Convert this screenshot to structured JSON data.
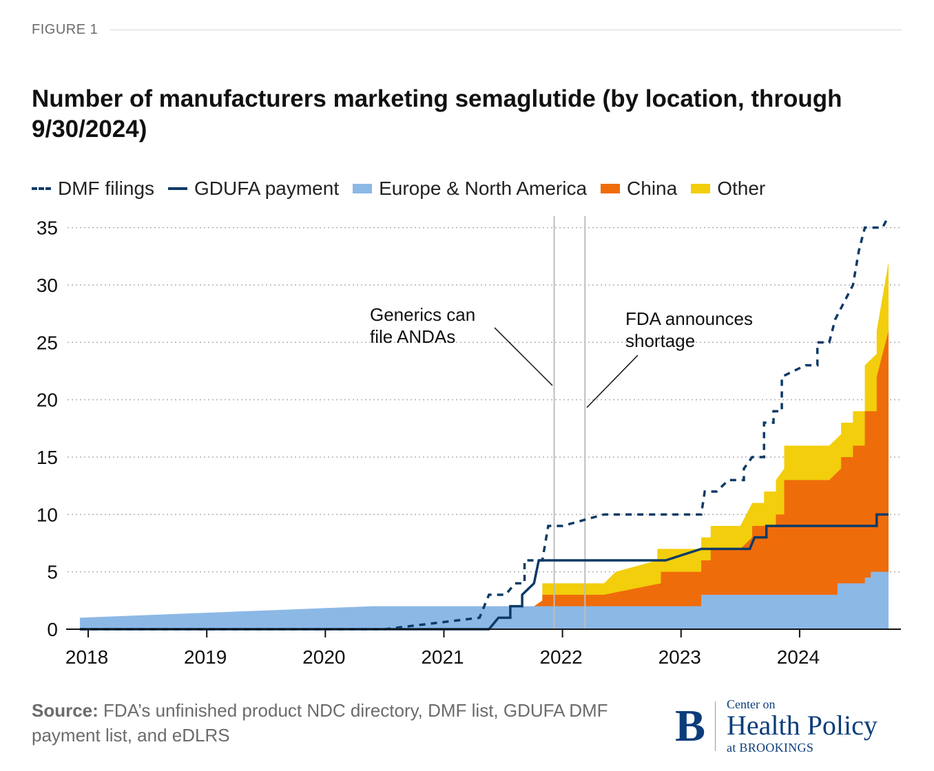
{
  "figure_label": "FIGURE 1",
  "title": "Number of manufacturers marketing semaglutide (by location, through 9/30/2024)",
  "legend": [
    {
      "label": "DMF filings",
      "style": "dash",
      "color": "#0d3a66"
    },
    {
      "label": "GDUFA payment",
      "style": "line",
      "color": "#0d3a66"
    },
    {
      "label": "Europe & North America",
      "style": "area",
      "color": "#8cb8e6"
    },
    {
      "label": "China",
      "style": "area",
      "color": "#ef6c0a"
    },
    {
      "label": "Other",
      "style": "area",
      "color": "#f2ce0c"
    }
  ],
  "chart_data": {
    "type": "area",
    "x_label": "",
    "y_label": "",
    "xlim": [
      2017.93,
      2024.75
    ],
    "ylim": [
      0,
      36
    ],
    "y_ticks": [
      0,
      5,
      10,
      15,
      20,
      25,
      30,
      35
    ],
    "x_ticks": [
      "2018",
      "2019",
      "2020",
      "2021",
      "2022",
      "2023",
      "2024"
    ],
    "grid": "horizontal dotted",
    "legend_position": "top",
    "colors": {
      "europe_na": "#8cb8e6",
      "china": "#ef6c0a",
      "other": "#f2ce0c",
      "lines": "#0d3a66",
      "vlines": "#bdbdbd",
      "grid": "#b0b0b0",
      "axis": "#111111"
    },
    "annotations": [
      {
        "lines": [
          "Generics can",
          "file ANDAs"
        ],
        "x": 2021.93
      },
      {
        "lines": [
          "FDA announces",
          "shortage"
        ],
        "x": 2022.19
      }
    ],
    "series": [
      {
        "name": "Europe & North America",
        "kind": "area",
        "points": [
          [
            2017.93,
            1
          ],
          [
            2020.4,
            2
          ],
          [
            2022.83,
            2
          ],
          [
            2023.17,
            2
          ],
          [
            2023.17,
            3
          ],
          [
            2024.32,
            3
          ],
          [
            2024.32,
            4
          ],
          [
            2024.55,
            4
          ],
          [
            2024.55,
            4.5
          ],
          [
            2024.6,
            4.5
          ],
          [
            2024.6,
            5
          ],
          [
            2024.75,
            5
          ]
        ]
      },
      {
        "name": "China",
        "kind": "area",
        "points": [
          [
            2021.76,
            2
          ],
          [
            2021.83,
            2.5
          ],
          [
            2021.83,
            3
          ],
          [
            2022.35,
            3
          ],
          [
            2022.83,
            4
          ],
          [
            2022.83,
            5
          ],
          [
            2023.17,
            5
          ],
          [
            2023.17,
            6
          ],
          [
            2023.25,
            6
          ],
          [
            2023.25,
            7
          ],
          [
            2023.5,
            7
          ],
          [
            2023.6,
            8
          ],
          [
            2023.6,
            9
          ],
          [
            2023.8,
            9
          ],
          [
            2023.8,
            10
          ],
          [
            2023.87,
            10
          ],
          [
            2023.87,
            13
          ],
          [
            2024.25,
            13
          ],
          [
            2024.35,
            14
          ],
          [
            2024.35,
            15
          ],
          [
            2024.45,
            15
          ],
          [
            2024.45,
            16
          ],
          [
            2024.55,
            16
          ],
          [
            2024.55,
            19
          ],
          [
            2024.65,
            19
          ],
          [
            2024.65,
            22
          ],
          [
            2024.75,
            26
          ]
        ]
      },
      {
        "name": "Other",
        "kind": "area",
        "points": [
          [
            2021.83,
            3
          ],
          [
            2021.83,
            4
          ],
          [
            2022.1,
            4
          ],
          [
            2022.35,
            4
          ],
          [
            2022.45,
            5
          ],
          [
            2022.8,
            6
          ],
          [
            2022.8,
            7
          ],
          [
            2023.17,
            7
          ],
          [
            2023.17,
            8
          ],
          [
            2023.25,
            8
          ],
          [
            2023.25,
            9
          ],
          [
            2023.5,
            9
          ],
          [
            2023.6,
            11
          ],
          [
            2023.7,
            11
          ],
          [
            2023.7,
            12
          ],
          [
            2023.8,
            12
          ],
          [
            2023.8,
            13
          ],
          [
            2023.87,
            14
          ],
          [
            2023.87,
            16
          ],
          [
            2024.25,
            16
          ],
          [
            2024.35,
            17
          ],
          [
            2024.35,
            18
          ],
          [
            2024.45,
            18
          ],
          [
            2024.45,
            19
          ],
          [
            2024.55,
            19
          ],
          [
            2024.55,
            23
          ],
          [
            2024.65,
            24
          ],
          [
            2024.65,
            26
          ],
          [
            2024.75,
            32
          ]
        ]
      },
      {
        "name": "GDUFA payment",
        "kind": "line",
        "style": "solid",
        "points": [
          [
            2017.93,
            0
          ],
          [
            2021.38,
            0
          ],
          [
            2021.46,
            1
          ],
          [
            2021.56,
            1
          ],
          [
            2021.56,
            2
          ],
          [
            2021.66,
            2
          ],
          [
            2021.66,
            3
          ],
          [
            2021.76,
            4
          ],
          [
            2021.8,
            6
          ],
          [
            2022.87,
            6
          ],
          [
            2023.17,
            7
          ],
          [
            2023.58,
            7
          ],
          [
            2023.62,
            8
          ],
          [
            2023.72,
            8
          ],
          [
            2023.72,
            9
          ],
          [
            2024.65,
            9
          ],
          [
            2024.65,
            10
          ],
          [
            2024.75,
            10
          ]
        ]
      },
      {
        "name": "DMF filings",
        "kind": "line",
        "style": "dash",
        "points": [
          [
            2017.93,
            0
          ],
          [
            2020.5,
            0
          ],
          [
            2021.3,
            1
          ],
          [
            2021.38,
            3
          ],
          [
            2021.52,
            3
          ],
          [
            2021.6,
            4
          ],
          [
            2021.68,
            4
          ],
          [
            2021.68,
            6
          ],
          [
            2021.83,
            6
          ],
          [
            2021.88,
            9
          ],
          [
            2022.0,
            9
          ],
          [
            2022.35,
            10
          ],
          [
            2023.17,
            10
          ],
          [
            2023.2,
            12
          ],
          [
            2023.3,
            12
          ],
          [
            2023.4,
            13
          ],
          [
            2023.53,
            13
          ],
          [
            2023.53,
            14
          ],
          [
            2023.6,
            15
          ],
          [
            2023.7,
            15
          ],
          [
            2023.7,
            18
          ],
          [
            2023.78,
            18
          ],
          [
            2023.78,
            19
          ],
          [
            2023.85,
            19
          ],
          [
            2023.85,
            22
          ],
          [
            2024.05,
            23
          ],
          [
            2024.15,
            23
          ],
          [
            2024.15,
            25
          ],
          [
            2024.25,
            25
          ],
          [
            2024.3,
            27
          ],
          [
            2024.4,
            29
          ],
          [
            2024.45,
            30
          ],
          [
            2024.5,
            33
          ],
          [
            2024.55,
            35
          ],
          [
            2024.7,
            35
          ],
          [
            2024.75,
            36
          ]
        ]
      }
    ]
  },
  "source": {
    "prefix": "Source:",
    "text": "FDA’s unfinished product NDC directory, DMF list, GDUFA DMF payment list, and eDLRS"
  },
  "logo": {
    "letter": "B",
    "line1": "Center on",
    "line2": "Health Policy",
    "line3": "at BROOKINGS"
  }
}
